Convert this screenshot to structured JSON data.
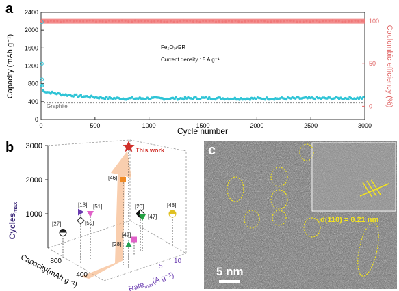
{
  "figure": {
    "panel_a": {
      "label": "a",
      "chart_data": {
        "type": "scatter",
        "xlabel": "Cycle number",
        "ylabel": "Capacity (mAh g⁻¹)",
        "y2label": "Coulombic efficiency (%)",
        "xlim": [
          0,
          3000
        ],
        "ylim": [
          0,
          2400
        ],
        "y2ticks": [
          "0",
          "50",
          "100"
        ],
        "xticks": [
          0,
          500,
          1000,
          1500,
          2000,
          2500,
          3000
        ],
        "yticks": [
          0,
          400,
          800,
          1200,
          1600,
          2000,
          2400
        ],
        "annotation_material": "Fe₂O₃/GR",
        "annotation_current": "Current density : 5 A g⁻¹",
        "reference_label": "Graphite",
        "series": [
          {
            "name": "capacity",
            "color": "#2fc4d6",
            "x": [
              1,
              5,
              10,
              30,
              50,
              100,
              200,
              300,
              400,
              500,
              600,
              800,
              1000,
              1200,
              1500,
              1800,
              2000,
              2500,
              3000
            ],
            "y": [
              1250,
              760,
              650,
              640,
              620,
              600,
              560,
              540,
              520,
              500,
              480,
              470,
              475,
              470,
              480,
              470,
              470,
              475,
              480
            ]
          },
          {
            "name": "coulombic efficiency",
            "color": "#f07878",
            "x": [
              1,
              3000
            ],
            "y": [
              100,
              100
            ]
          },
          {
            "name": "graphite reference",
            "color": "#888888",
            "x": [
              0,
              3000
            ],
            "y": [
              372,
              372
            ]
          }
        ]
      }
    },
    "panel_b": {
      "label": "b",
      "chart_data": {
        "type": "scatter",
        "zlabel": "Cycles",
        "zlabel_sub": "max",
        "xlabel": "Capacity(mAh g⁻¹)",
        "ylabel": "Rate",
        "ylabel_sub": "max",
        "ylabel_unit": "(A g⁻¹)",
        "zticks": [
          "1000",
          "2000",
          "3000"
        ],
        "capacity_ticks": [
          "400",
          "800"
        ],
        "rate_ticks": [
          "5",
          "10"
        ],
        "points": [
          {
            "label": "This work",
            "color": "#d0302a",
            "marker": "star",
            "z": 3000
          },
          {
            "label": "[46]",
            "color": "#f08a24",
            "marker": "square",
            "z": 2000
          },
          {
            "label": "[13]",
            "color": "#6a3cb0",
            "marker": "triangle-right",
            "z": 1050
          },
          {
            "label": "[51]",
            "color": "#e060c8",
            "marker": "triangle-down",
            "z": 1000
          },
          {
            "label": "[50]",
            "color": "#3a3a3a",
            "marker": "diamond-open",
            "z": 800
          },
          {
            "label": "[27]",
            "color": "#222222",
            "marker": "circle-half",
            "z": 450
          },
          {
            "label": "[20]",
            "color": "#111111",
            "marker": "diamond-half",
            "z": 1000
          },
          {
            "label": "[47]",
            "color": "#22a040",
            "marker": "triangle-down",
            "z": 900
          },
          {
            "label": "[48]",
            "color": "#e0c020",
            "marker": "circle-half",
            "z": 1000
          },
          {
            "label": "[49]",
            "color": "#e060c8",
            "marker": "square",
            "z": 250
          },
          {
            "label": "[28]",
            "color": "#22a050",
            "marker": "triangle-up",
            "z": 100
          }
        ]
      }
    },
    "panel_c": {
      "label": "c",
      "scale_bar": "5 nm",
      "inset_annotation": "d(110) = 0.21 nm"
    }
  }
}
